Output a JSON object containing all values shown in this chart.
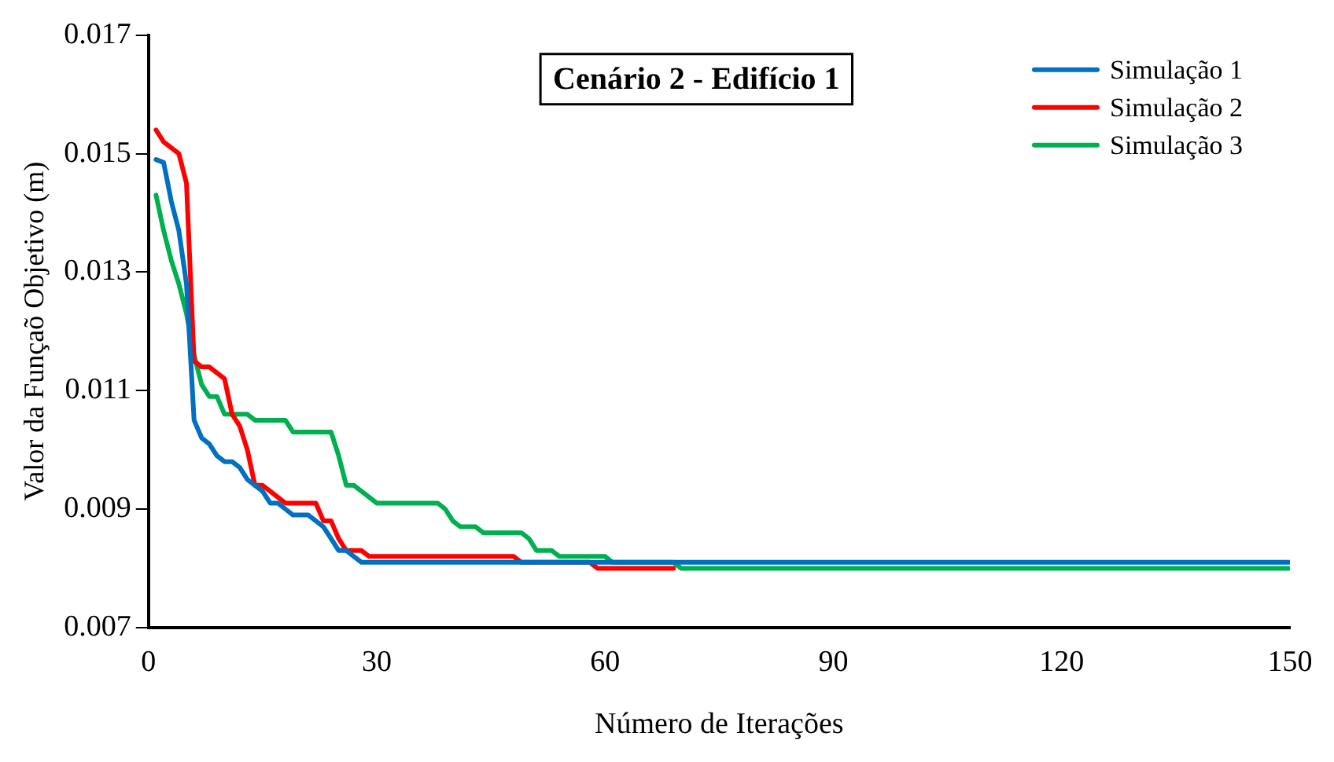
{
  "chart_data": {
    "type": "line",
    "title": "Cenário 2 - Edifício 1",
    "xlabel": "Número de Iterações",
    "ylabel": "Valor da Funçaõ Objetivo (m)",
    "xlim": [
      0,
      150
    ],
    "xticks": [
      0,
      30,
      60,
      90,
      120,
      150
    ],
    "ylim": [
      0.007,
      0.017
    ],
    "yticks": [
      0.007,
      0.009,
      0.011,
      0.013,
      0.015,
      0.017
    ],
    "grid": false,
    "legend": "top right",
    "marker": "none",
    "line_style": "solid",
    "series": [
      {
        "name": "Simulação 1",
        "color": "#0070c0",
        "x": [
          1,
          2,
          3,
          4,
          5,
          6,
          7,
          8,
          9,
          10,
          11,
          12,
          13,
          14,
          15,
          16,
          17,
          18,
          19,
          21,
          22,
          23,
          24,
          25,
          26,
          27,
          28,
          150
        ],
        "values": [
          0.0149,
          0.01485,
          0.0142,
          0.0137,
          0.0128,
          0.0105,
          0.0102,
          0.0101,
          0.0099,
          0.0098,
          0.0098,
          0.0097,
          0.0095,
          0.0094,
          0.0093,
          0.0091,
          0.0091,
          0.009,
          0.0089,
          0.0089,
          0.0088,
          0.0087,
          0.0085,
          0.0083,
          0.0083,
          0.0082,
          0.0081,
          0.0081
        ]
      },
      {
        "name": "Simulação 2",
        "color": "#ff0000",
        "x": [
          1,
          2,
          3,
          4,
          5,
          6,
          7,
          8,
          9,
          10,
          11,
          12,
          13,
          14,
          15,
          16,
          17,
          18,
          22,
          23,
          24,
          25,
          26,
          28,
          29,
          48,
          49,
          58,
          59,
          69
        ],
        "values": [
          0.0154,
          0.0152,
          0.0151,
          0.015,
          0.0145,
          0.0115,
          0.0114,
          0.0114,
          0.0113,
          0.0112,
          0.0106,
          0.0104,
          0.01,
          0.0094,
          0.0094,
          0.0093,
          0.0092,
          0.0091,
          0.0091,
          0.0088,
          0.0088,
          0.0085,
          0.0083,
          0.0083,
          0.0082,
          0.0082,
          0.0081,
          0.0081,
          0.008,
          0.008
        ]
      },
      {
        "name": "Simulação 3",
        "color": "#00b050",
        "x": [
          1,
          2,
          3,
          4,
          5,
          6,
          7,
          8,
          9,
          10,
          13,
          14,
          18,
          19,
          24,
          25,
          26,
          27,
          28,
          29,
          30,
          38,
          39,
          40,
          41,
          43,
          44,
          49,
          50,
          51,
          53,
          54,
          60,
          61,
          69,
          70,
          150
        ],
        "values": [
          0.0143,
          0.0137,
          0.0132,
          0.0128,
          0.0123,
          0.0116,
          0.0111,
          0.0109,
          0.0109,
          0.0106,
          0.0106,
          0.0105,
          0.0105,
          0.0103,
          0.0103,
          0.0099,
          0.0094,
          0.0094,
          0.0093,
          0.0092,
          0.0091,
          0.0091,
          0.009,
          0.0088,
          0.0087,
          0.0087,
          0.0086,
          0.0086,
          0.0085,
          0.0083,
          0.0083,
          0.0082,
          0.0082,
          0.0081,
          0.0081,
          0.008,
          0.008
        ]
      }
    ]
  }
}
